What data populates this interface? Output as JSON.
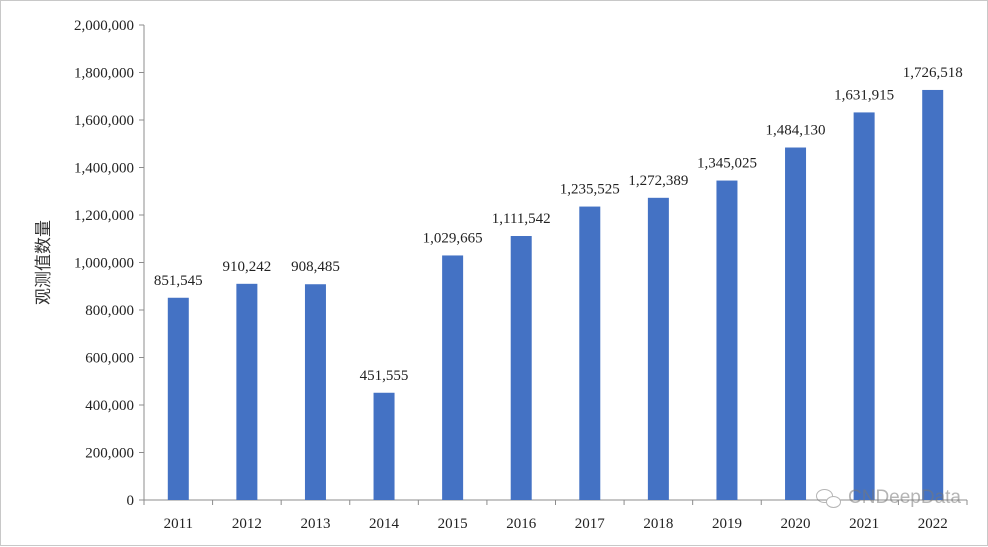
{
  "chart_data": {
    "type": "bar",
    "categories": [
      "2011",
      "2012",
      "2013",
      "2014",
      "2015",
      "2016",
      "2017",
      "2018",
      "2019",
      "2020",
      "2021",
      "2022"
    ],
    "values": [
      851545,
      910242,
      908485,
      451555,
      1029665,
      1111542,
      1235525,
      1272389,
      1345025,
      1484130,
      1631915,
      1726518
    ],
    "value_labels": [
      "851,545",
      "910,242",
      "908,485",
      "451,555",
      "1,029,665",
      "1,111,542",
      "1,235,525",
      "1,272,389",
      "1,345,025",
      "1,484,130",
      "1,631,915",
      "1,726,518"
    ],
    "ylabel": "观测值数量",
    "xlabel": "",
    "title": "",
    "ylim": [
      0,
      2000000
    ],
    "yticks": [
      "0",
      "200,000",
      "400,000",
      "600,000",
      "800,000",
      "1,000,000",
      "1,200,000",
      "1,400,000",
      "1,600,000",
      "1,800,000",
      "2,000,000"
    ],
    "bar_color": "#4472C4",
    "grid": false,
    "legend": "none"
  },
  "watermark": {
    "text": "CNDeepData",
    "icon": "wechat-icon"
  }
}
